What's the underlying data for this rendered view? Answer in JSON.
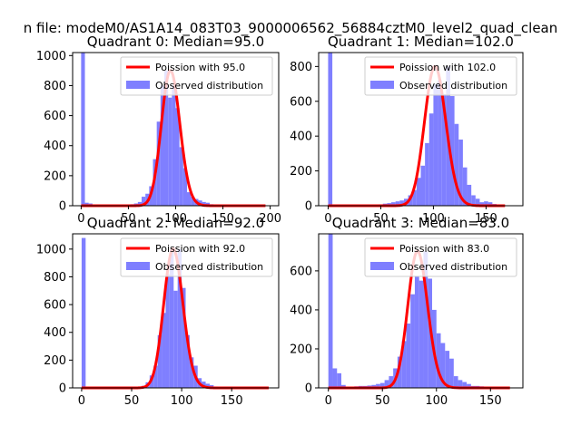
{
  "suptitle": "n file: modeM0/AS1A14_083T03_9000006562_56884cztM0_level2_quad_clean",
  "colors": {
    "hist": "#7f7fff",
    "fit": "#ff0000",
    "axis": "#000000",
    "legend_border": "#cccccc"
  },
  "chart_data": [
    {
      "type": "bar",
      "title": "Quadrant 0: Median=95.0",
      "median": 95.0,
      "xlim": [
        -9,
        209
      ],
      "ylim": [
        0,
        1020
      ],
      "xticks": [
        0,
        50,
        100,
        150,
        200
      ],
      "yticks": [
        0,
        200,
        400,
        600,
        800,
        1000
      ],
      "bin_width": 4,
      "hist": {
        "bins": [
          0,
          4,
          8,
          12,
          16,
          20,
          24,
          28,
          32,
          36,
          40,
          44,
          48,
          52,
          56,
          60,
          64,
          68,
          72,
          76,
          80,
          84,
          88,
          92,
          96,
          100,
          104,
          108,
          112,
          116,
          120,
          124,
          128,
          132,
          136,
          140,
          144,
          148,
          152,
          156,
          160,
          164,
          168,
          172,
          176,
          180,
          184,
          188,
          192
        ],
        "counts": [
          1020,
          20,
          15,
          5,
          3,
          2,
          2,
          2,
          3,
          3,
          5,
          5,
          8,
          10,
          15,
          25,
          60,
          80,
          130,
          310,
          560,
          800,
          900,
          720,
          800,
          650,
          390,
          250,
          90,
          60,
          45,
          35,
          25,
          20,
          10,
          8,
          5,
          5,
          3,
          2,
          2,
          1,
          1,
          1,
          1,
          0,
          0,
          0,
          0
        ]
      },
      "fit": {
        "label": "Poission with 95.0",
        "mu": 95,
        "x": [
          0,
          195
        ]
      },
      "legend": [
        "Poission with 95.0",
        "Observed distribution"
      ]
    },
    {
      "type": "bar",
      "title": "Quadrant 1: Median=102.0",
      "median": 102.0,
      "xlim": [
        -9,
        185
      ],
      "ylim": [
        0,
        880
      ],
      "xticks": [
        0,
        50,
        100,
        150
      ],
      "yticks": [
        0,
        200,
        400,
        600,
        800
      ],
      "bin_width": 4,
      "hist": {
        "bins": [
          0,
          4,
          8,
          12,
          16,
          20,
          24,
          28,
          32,
          36,
          40,
          44,
          48,
          52,
          56,
          60,
          64,
          68,
          72,
          76,
          80,
          84,
          88,
          92,
          96,
          100,
          104,
          108,
          112,
          116,
          120,
          124,
          128,
          132,
          136,
          140,
          144,
          148,
          152,
          156,
          160,
          164,
          168
        ],
        "counts": [
          880,
          5,
          3,
          2,
          2,
          2,
          3,
          3,
          3,
          4,
          5,
          5,
          8,
          12,
          15,
          20,
          25,
          30,
          40,
          60,
          90,
          160,
          230,
          360,
          530,
          700,
          720,
          640,
          800,
          630,
          470,
          380,
          220,
          120,
          60,
          40,
          20,
          25,
          20,
          10,
          5,
          3,
          2
        ]
      },
      "fit": {
        "label": "Poission with 102.0",
        "mu": 102,
        "x": [
          0,
          168
        ]
      },
      "legend": [
        "Poission with 102.0",
        "Observed distribution"
      ]
    },
    {
      "type": "bar",
      "title": "Quadrant 2: Median=92.0",
      "median": 92.0,
      "xlim": [
        -9,
        197
      ],
      "ylim": [
        0,
        1110
      ],
      "xticks": [
        0,
        50,
        100,
        150
      ],
      "yticks": [
        0,
        200,
        400,
        600,
        800,
        1000
      ],
      "bin_width": 4,
      "hist": {
        "bins": [
          0,
          4,
          8,
          12,
          16,
          20,
          24,
          28,
          32,
          36,
          40,
          44,
          48,
          52,
          56,
          60,
          64,
          68,
          72,
          76,
          80,
          84,
          88,
          92,
          96,
          100,
          104,
          108,
          112,
          116,
          120,
          124,
          128,
          132,
          136,
          140,
          144,
          148,
          152,
          156,
          160,
          164,
          168,
          172,
          176,
          180,
          184
        ],
        "counts": [
          1080,
          3,
          2,
          1,
          1,
          1,
          1,
          1,
          2,
          2,
          3,
          3,
          5,
          5,
          8,
          15,
          40,
          90,
          160,
          380,
          540,
          820,
          1000,
          700,
          1000,
          720,
          380,
          220,
          160,
          70,
          45,
          30,
          20,
          10,
          5,
          5,
          3,
          3,
          2,
          2,
          1,
          1,
          1,
          1,
          0,
          0,
          0
        ]
      },
      "fit": {
        "label": "Poission with 92.0",
        "mu": 92,
        "x": [
          0,
          187
        ]
      },
      "legend": [
        "Poission with 92.0",
        "Observed distribution"
      ]
    },
    {
      "type": "bar",
      "title": "Quadrant 3: Median=83.0",
      "median": 83.0,
      "xlim": [
        -9,
        180
      ],
      "ylim": [
        0,
        790
      ],
      "xticks": [
        0,
        50,
        100,
        150
      ],
      "yticks": [
        0,
        200,
        400,
        600
      ],
      "bin_width": 4,
      "hist": {
        "bins": [
          0,
          4,
          8,
          12,
          16,
          20,
          24,
          28,
          32,
          36,
          40,
          44,
          48,
          52,
          56,
          60,
          64,
          68,
          72,
          76,
          80,
          84,
          88,
          92,
          96,
          100,
          104,
          108,
          112,
          116,
          120,
          124,
          128,
          132,
          136,
          140,
          144,
          148,
          152,
          156,
          160,
          164,
          168
        ],
        "counts": [
          790,
          100,
          75,
          15,
          5,
          5,
          8,
          10,
          10,
          12,
          15,
          20,
          25,
          40,
          60,
          100,
          160,
          240,
          330,
          480,
          570,
          550,
          700,
          560,
          400,
          280,
          230,
          190,
          150,
          60,
          40,
          30,
          20,
          10,
          10,
          8,
          5,
          3,
          2,
          2,
          1,
          1,
          1
        ]
      },
      "fit": {
        "label": "Poission with 83.0",
        "mu": 83,
        "x": [
          0,
          168
        ]
      },
      "legend": [
        "Poission with 83.0",
        "Observed distribution"
      ]
    }
  ]
}
